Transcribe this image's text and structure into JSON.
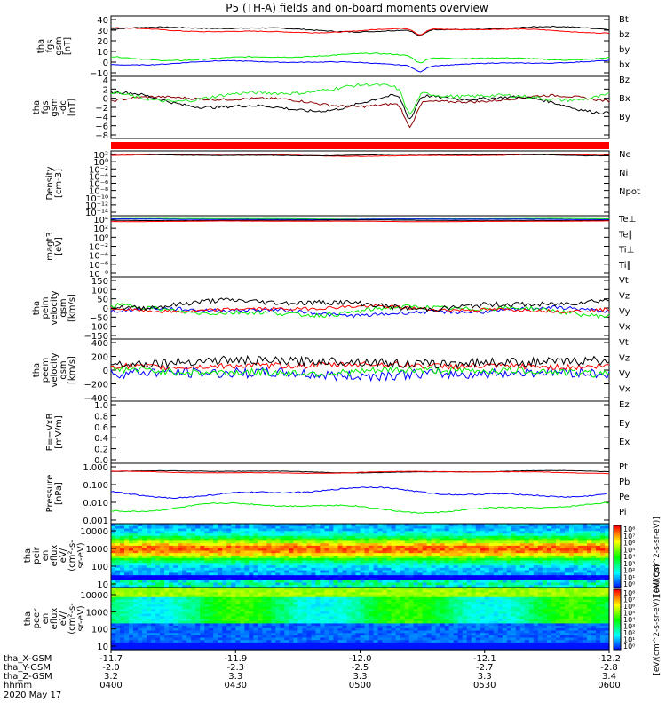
{
  "title": "P5 (TH-A) fields and on-board moments overview",
  "colors": {
    "black": "#000000",
    "red": "#ff0000",
    "green": "#00ee00",
    "blue": "#0000ff",
    "darkred": "#8b0000",
    "brightgreen": "#22ee22"
  },
  "chart_data": [
    {
      "type": "line",
      "id": "fgs",
      "ylabel": [
        "tha",
        "fgs",
        "gsm",
        "[nT]"
      ],
      "yticks": [
        "40",
        "30",
        "20",
        "10",
        "0",
        "−10"
      ],
      "ylim": [
        -10,
        40
      ],
      "legend": [
        {
          "name": "Bt",
          "color": "#000000"
        },
        {
          "name": "bz",
          "color": "#ff0000"
        },
        {
          "name": "by",
          "color": "#00ee00"
        },
        {
          "name": "bx",
          "color": "#0000ff"
        }
      ],
      "series": [
        {
          "name": "Bt",
          "color": "#000000",
          "base": 29,
          "wave": 1.5,
          "noise": 0.4
        },
        {
          "name": "bz",
          "color": "#ff0000",
          "base": 28,
          "wave": 1.5,
          "noise": 0.3
        },
        {
          "name": "by",
          "color": "#00ee00",
          "base": 6,
          "wave": 2,
          "noise": 0.4
        },
        {
          "name": "bx",
          "color": "#0000ff",
          "base": 1,
          "wave": 1.5,
          "noise": 0.3
        }
      ],
      "dips": [
        {
          "x": 0.62,
          "depth": 5
        }
      ]
    },
    {
      "type": "line",
      "id": "fgs_dc",
      "ylabel": [
        "tha",
        "fgs",
        "gsm",
        "-dc",
        "[nT]"
      ],
      "yticks": [
        "4",
        "2",
        "0",
        "−2",
        "−4",
        "−6",
        "−8"
      ],
      "ylim": [
        -9,
        4
      ],
      "legend": [
        {
          "name": "Bz",
          "color": "#8b0000"
        },
        {
          "name": "Bx",
          "color": "#000000"
        },
        {
          "name": "By",
          "color": "#22ee22"
        }
      ],
      "series": [
        {
          "name": "Bz",
          "color": "#8b0000",
          "base": -1.2,
          "wave": 0.8,
          "noise": 0.25
        },
        {
          "name": "Bx",
          "color": "#000000",
          "base": -1.5,
          "wave": 1.5,
          "noise": 0.3
        },
        {
          "name": "By",
          "color": "#22ee22",
          "base": 0.5,
          "wave": 1.2,
          "noise": 0.35
        }
      ],
      "dips": [
        {
          "x": 0.6,
          "depth": 5
        }
      ]
    },
    {
      "type": "bar",
      "id": "mode_bar",
      "values": [
        1
      ],
      "color": "#ff0000"
    },
    {
      "type": "line",
      "id": "density",
      "ylabel": [
        "Density",
        "[cm-3]"
      ],
      "yticks": [
        "10²",
        "10⁰",
        "10⁻²",
        "10⁻⁴",
        "10⁻⁶",
        "10⁻⁸",
        "10⁻¹⁰",
        "10⁻¹²",
        "10⁻¹⁴"
      ],
      "ylim": [
        -14,
        2
      ],
      "yscale": "log",
      "legend": [
        {
          "name": "Ne",
          "color": "#ff0000"
        },
        {
          "name": "Ni",
          "color": "#000000"
        },
        {
          "name": "Npot",
          "color": "#0000ff"
        }
      ],
      "series": [
        {
          "name": "Ne",
          "color": "#ff0000",
          "base": 0.9,
          "wave": 0.15,
          "noise": 0.05
        },
        {
          "name": "Ni",
          "color": "#000000",
          "base": 1.0,
          "wave": 0.15,
          "noise": 0.05
        }
      ]
    },
    {
      "type": "line",
      "id": "temperature",
      "ylabel": [
        "magt3",
        "[eV]"
      ],
      "yticks": [
        "10⁴",
        "10²",
        "10⁰",
        "10⁻²",
        "10⁻⁴",
        "10⁻⁶",
        "10⁻⁸"
      ],
      "ylim": [
        -8,
        4
      ],
      "yscale": "log",
      "legend": [
        {
          "name": "Te⊥",
          "color": "#ff0000"
        },
        {
          "name": "Te∥",
          "color": "#000000"
        },
        {
          "name": "Ti⊥",
          "color": "#0000ff"
        },
        {
          "name": "Ti∥",
          "color": "#00ee00"
        }
      ],
      "series": [
        {
          "name": "Ti∥",
          "color": "#00ee00",
          "base": 3.4,
          "wave": 0.05,
          "noise": 0.02
        },
        {
          "name": "Ti⊥",
          "color": "#0000ff",
          "base": 3.3,
          "wave": 0.05,
          "noise": 0.02
        },
        {
          "name": "Te∥",
          "color": "#000000",
          "base": 3.1,
          "wave": 0.05,
          "noise": 0.02
        },
        {
          "name": "Te⊥",
          "color": "#ff0000",
          "base": 2.9,
          "wave": 0.05,
          "noise": 0.02
        }
      ]
    },
    {
      "type": "line",
      "id": "peim_velocity",
      "ylabel": [
        "tha",
        "peim",
        "velocity",
        "gsm",
        "[km/s]"
      ],
      "yticks": [
        "150",
        "100",
        "50",
        "0",
        "−50",
        "−100",
        "−150"
      ],
      "ylim": [
        -170,
        170
      ],
      "legend": [
        {
          "name": "Vt",
          "color": "#000000"
        },
        {
          "name": "Vz",
          "color": "#ff0000"
        },
        {
          "name": "Vy",
          "color": "#00ee00"
        },
        {
          "name": "Vx",
          "color": "#0000ff"
        }
      ],
      "series": [
        {
          "name": "Vx",
          "color": "#0000ff",
          "base": -20,
          "wave": 15,
          "noise": 10
        },
        {
          "name": "Vy",
          "color": "#00ee00",
          "base": -15,
          "wave": 20,
          "noise": 12
        },
        {
          "name": "Vz",
          "color": "#ff0000",
          "base": -5,
          "wave": 10,
          "noise": 9
        },
        {
          "name": "Vt",
          "color": "#000000",
          "base": 20,
          "wave": 18,
          "noise": 14
        }
      ]
    },
    {
      "type": "line",
      "id": "peem_velocity",
      "ylabel": [
        "tha",
        "peem",
        "velocity",
        "gsm",
        "[km/s]"
      ],
      "yticks": [
        "400",
        "200",
        "0",
        "−200",
        "−400"
      ],
      "ylim": [
        -420,
        420
      ],
      "legend": [
        {
          "name": "Vt",
          "color": "#000000"
        },
        {
          "name": "Vz",
          "color": "#ff0000"
        },
        {
          "name": "Vy",
          "color": "#00ee00"
        },
        {
          "name": "Vx",
          "color": "#0000ff"
        }
      ],
      "series": [
        {
          "name": "Vx",
          "color": "#0000ff",
          "base": -50,
          "wave": 20,
          "noise": 70
        },
        {
          "name": "Vy",
          "color": "#00ee00",
          "base": -20,
          "wave": 20,
          "noise": 50
        },
        {
          "name": "Vz",
          "color": "#ff0000",
          "base": 60,
          "wave": 15,
          "noise": 40
        },
        {
          "name": "Vt",
          "color": "#000000",
          "base": 110,
          "wave": 20,
          "noise": 60
        }
      ]
    },
    {
      "type": "line",
      "id": "efield",
      "ylabel": [
        "E=−VxB",
        "[mV/m]"
      ],
      "yticks": [
        "1.0",
        "0.8",
        "0.6",
        "0.4",
        "0.2",
        "0.0"
      ],
      "ylim": [
        0,
        1
      ],
      "legend": [
        {
          "name": "Ez",
          "color": "#ff0000"
        },
        {
          "name": "Ey",
          "color": "#00ee00"
        },
        {
          "name": "Ex",
          "color": "#0000ff"
        }
      ],
      "series": []
    },
    {
      "type": "line",
      "id": "pressure",
      "ylabel": [
        "Pressure",
        "[nPa]"
      ],
      "yticks": [
        "1.000",
        "0.100",
        "0.010",
        "0.001"
      ],
      "ylim": [
        -3,
        0
      ],
      "yscale": "log",
      "legend": [
        {
          "name": "Pt",
          "color": "#000000"
        },
        {
          "name": "Pb",
          "color": "#ff0000"
        },
        {
          "name": "Pe",
          "color": "#00ee00"
        },
        {
          "name": "Pi",
          "color": "#0000ff"
        }
      ],
      "series": [
        {
          "name": "Pt",
          "color": "#000000",
          "base": -0.42,
          "wave": 0.04,
          "noise": 0.01
        },
        {
          "name": "Pb",
          "color": "#ff0000",
          "base": -0.45,
          "wave": 0.04,
          "noise": 0.01
        },
        {
          "name": "Pi",
          "color": "#0000ff",
          "base": -1.45,
          "wave": 0.18,
          "noise": 0.03
        },
        {
          "name": "Pe",
          "color": "#00ee00",
          "base": -2.2,
          "wave": 0.18,
          "noise": 0.03
        }
      ]
    },
    {
      "type": "heatmap",
      "id": "peir",
      "ylabel": [
        "tha",
        "peir",
        "en",
        "eflux",
        "eV/",
        "(cm²-s-",
        "sr-eV)"
      ],
      "yticks": [
        "10000",
        "1000",
        "100",
        "10"
      ],
      "ylim": [
        1,
        4.5
      ],
      "yscale": "log"
    },
    {
      "type": "heatmap",
      "id": "peer",
      "ylabel": [
        "tha",
        "peer",
        "en",
        "eflux",
        "eV/",
        "(cm²-s-",
        "sr-eV)"
      ],
      "yticks": [
        "10000",
        "1000",
        "100",
        "10"
      ],
      "ylim": [
        1,
        4.5
      ],
      "yscale": "log"
    }
  ],
  "colorbar": {
    "ticks": [
      "10⁸",
      "10⁷",
      "10⁶",
      "10⁵",
      "10⁴",
      "10³",
      "10²",
      "10¹",
      "10⁰"
    ],
    "label_1": "[eV/(cm^2-s-sr-eV)]",
    "label_2": "[eV/(cm^2-s-sr-eV)] (All Qs)"
  },
  "xaxis": {
    "row_labels": [
      "tha_X-GSM",
      "tha_Y-GSM",
      "tha_Z-GSM",
      "hhmm",
      "2020 May 17"
    ],
    "ticks": [
      {
        "x": "-11.7",
        "y": "-2.0",
        "z": "3.2",
        "t": "0400"
      },
      {
        "x": "-11.9",
        "y": "-2.3",
        "z": "3.3",
        "t": "0430"
      },
      {
        "x": "-12.0",
        "y": "-2.5",
        "z": "3.3",
        "t": "0500"
      },
      {
        "x": "-12.1",
        "y": "-2.7",
        "z": "3.3",
        "t": "0530"
      },
      {
        "x": "-12.2",
        "y": "-2.8",
        "z": "3.4",
        "t": "0600"
      }
    ]
  }
}
